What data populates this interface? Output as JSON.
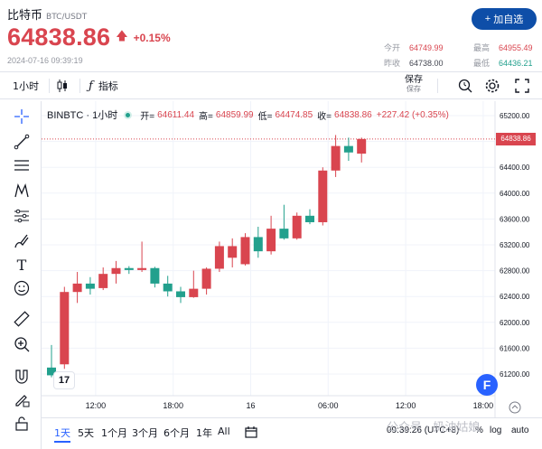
{
  "header": {
    "name": "比特币",
    "pair": "BTC/USDT",
    "price": "64838.86",
    "change": "+0.15%",
    "timestamp": "2024-07-16 09:39:19",
    "add_button": "加自选",
    "stats": {
      "open_label": "今开",
      "open": "64749.99",
      "prev_label": "昨收",
      "prev": "64738.00",
      "high_label": "最高",
      "high": "64955.49",
      "low_label": "最低",
      "low": "64436.21"
    }
  },
  "toolbar": {
    "interval": "1小时",
    "indicators": "指标",
    "save_top": "保存",
    "save_bottom": "保存"
  },
  "info": {
    "symbol": "BINBTC · 1小时",
    "open_k": "开=",
    "open_v": "64611.44",
    "high_k": "高=",
    "high_v": "64859.99",
    "low_k": "低=",
    "low_v": "64474.85",
    "close_k": "收=",
    "close_v": "64838.86",
    "change_v": "+227.42 (+0.35%)"
  },
  "chart_data": {
    "type": "candlestick",
    "y_ticks": [
      61200,
      61600,
      62000,
      62400,
      62800,
      63200,
      63600,
      64000,
      64400,
      64800,
      65200
    ],
    "y_tick_labels": [
      "61200.00",
      "61600.00",
      "62000.00",
      "62400.00",
      "62800.00",
      "63200.00",
      "63600.00",
      "64000.00",
      "64400.00",
      "64800.00",
      "65200.00"
    ],
    "ylim": [
      61000,
      65300
    ],
    "x_labels": [
      {
        "label": "12:00",
        "index": 3
      },
      {
        "label": "18:00",
        "index": 9
      },
      {
        "label": "16",
        "index": 15
      },
      {
        "label": "06:00",
        "index": 21
      },
      {
        "label": "12:00",
        "index": 27
      },
      {
        "label": "18:00",
        "index": 33
      }
    ],
    "last_price": 64838.86,
    "last_price_label": "64838.86",
    "up_color": "#d9454f",
    "down_color": "#22a08d",
    "candles": [
      {
        "o": 61300,
        "h": 61650,
        "l": 61150,
        "c": 61180
      },
      {
        "o": 61350,
        "h": 62550,
        "l": 61280,
        "c": 62470
      },
      {
        "o": 62470,
        "h": 62780,
        "l": 62300,
        "c": 62600
      },
      {
        "o": 62600,
        "h": 62700,
        "l": 62430,
        "c": 62520
      },
      {
        "o": 62530,
        "h": 62850,
        "l": 62500,
        "c": 62750
      },
      {
        "o": 62750,
        "h": 62950,
        "l": 62600,
        "c": 62840
      },
      {
        "o": 62840,
        "h": 62870,
        "l": 62750,
        "c": 62810
      },
      {
        "o": 62810,
        "h": 63250,
        "l": 62780,
        "c": 62840
      },
      {
        "o": 62840,
        "h": 62860,
        "l": 62540,
        "c": 62600
      },
      {
        "o": 62600,
        "h": 62720,
        "l": 62400,
        "c": 62480
      },
      {
        "o": 62480,
        "h": 62550,
        "l": 62300,
        "c": 62390
      },
      {
        "o": 62390,
        "h": 62800,
        "l": 62380,
        "c": 62520
      },
      {
        "o": 62520,
        "h": 62850,
        "l": 62430,
        "c": 62830
      },
      {
        "o": 62830,
        "h": 63250,
        "l": 62780,
        "c": 63180
      },
      {
        "o": 63000,
        "h": 63300,
        "l": 62850,
        "c": 63180
      },
      {
        "o": 62900,
        "h": 63380,
        "l": 62880,
        "c": 63320
      },
      {
        "o": 63320,
        "h": 63480,
        "l": 63000,
        "c": 63100
      },
      {
        "o": 63100,
        "h": 63650,
        "l": 63050,
        "c": 63450
      },
      {
        "o": 63450,
        "h": 63820,
        "l": 63280,
        "c": 63300
      },
      {
        "o": 63300,
        "h": 63700,
        "l": 63280,
        "c": 63650
      },
      {
        "o": 63650,
        "h": 63750,
        "l": 63520,
        "c": 63550
      },
      {
        "o": 63550,
        "h": 64400,
        "l": 63500,
        "c": 64350
      },
      {
        "o": 64350,
        "h": 64900,
        "l": 64250,
        "c": 64730
      },
      {
        "o": 64730,
        "h": 64860,
        "l": 64500,
        "c": 64630
      },
      {
        "o": 64611.44,
        "h": 64859.99,
        "l": 64474.85,
        "c": 64838.86
      }
    ]
  },
  "bottom": {
    "ranges": [
      "1天",
      "5天",
      "1个月",
      "3个月",
      "6个月",
      "1年",
      "All"
    ],
    "time": "09:39:26 (UTC+8)",
    "pct": "%",
    "log": "log",
    "auto": "auto",
    "watermark": "公众号 · 奶油姑娘"
  },
  "logo": "17",
  "badge": "F"
}
